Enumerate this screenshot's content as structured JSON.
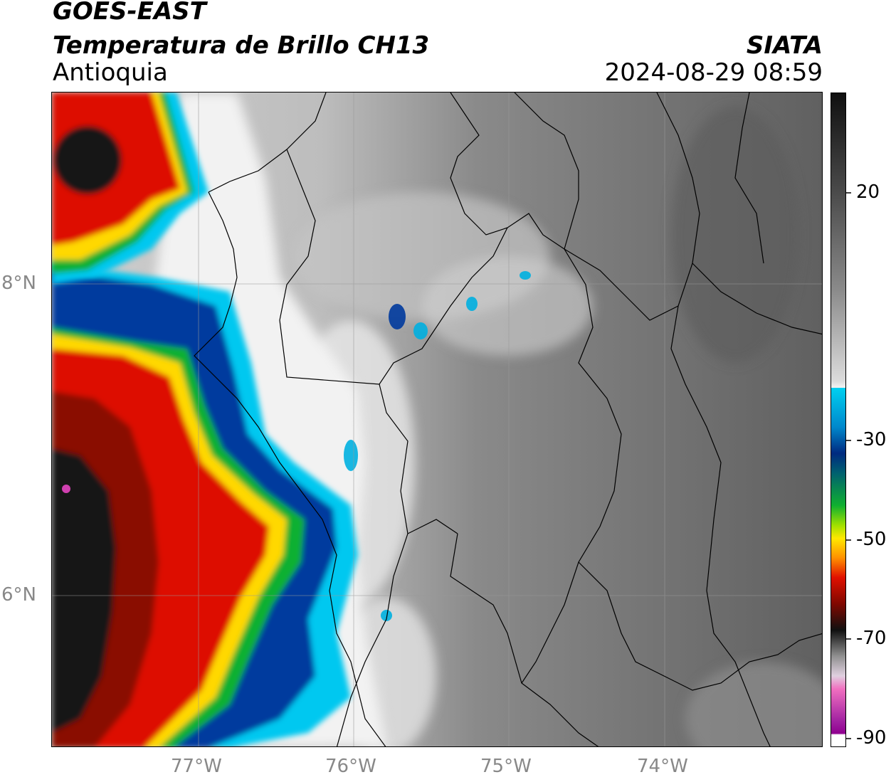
{
  "header": {
    "satellite": "GOES-EAST",
    "product": "Temperatura de Brillo CH13",
    "region": "Antioquia",
    "agency": "SIATA",
    "datetime": "2024-08-29 08:59"
  },
  "axes": {
    "lat_ticks": [
      "8°N",
      "6°N"
    ],
    "lon_ticks": [
      "77°W",
      "76°W",
      "75°W",
      "74°W"
    ]
  },
  "colorbar": {
    "ticks": [
      "20",
      "-30",
      "-50",
      "-70",
      "-90"
    ],
    "colors": {
      "warm_gray": "#6e6e6e",
      "white": "#f2f2f2",
      "cyan": "#00c8f0",
      "blue": "#003a9e",
      "green": "#10b030",
      "yellow": "#ffd800",
      "red": "#dd1100",
      "dark_red": "#6a0a00",
      "black": "#101010",
      "magenta": "#d040b0"
    }
  }
}
